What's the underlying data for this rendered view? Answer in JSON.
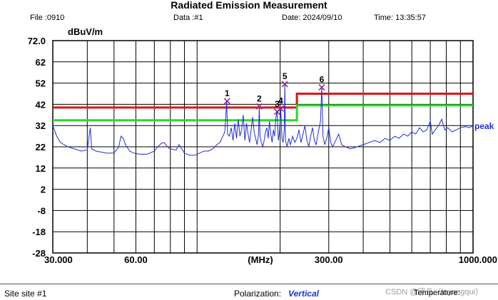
{
  "header": {
    "title": "Radiated Emission Measurement",
    "file": "File :0910",
    "data": "Data :#1",
    "date": "Date: 2024/09/10",
    "time": "Time: 13:35:57"
  },
  "footer": {
    "site": "Site  site #1",
    "polarization_label": "Polarization:",
    "polarization_value": "Vertical",
    "temperature": "Temperature:",
    "watermark": "CSDN @浮凡（fuyongqui）"
  },
  "colors": {
    "trace": "#1f2fd8",
    "limit_red": "#e01515",
    "limit_green": "#22dd22",
    "marker": "#8a2a8a",
    "grid": "#000000"
  },
  "chart_data": {
    "type": "line",
    "xscale": "log",
    "xlim": [
      30,
      1000
    ],
    "ylim": [
      -28,
      72
    ],
    "xlabel": "(MHz)",
    "ylabel": "dBuV/m",
    "yticks": [
      "72.0",
      "62",
      "52",
      "42",
      "32",
      "22",
      "12",
      "2",
      "-8",
      "-18",
      "-28"
    ],
    "xticks": [
      "30.000",
      "60.00",
      "300.00",
      "1000.000"
    ],
    "xtick_values": [
      30,
      60,
      300,
      1000
    ],
    "trace_label": "peak",
    "limits": [
      {
        "color": "red",
        "points": [
          [
            30,
            40.5
          ],
          [
            230,
            40.5
          ],
          [
            230,
            47
          ],
          [
            1000,
            47
          ]
        ]
      },
      {
        "color": "green",
        "points": [
          [
            30,
            34.5
          ],
          [
            230,
            34.5
          ],
          [
            230,
            41.5
          ],
          [
            1000,
            41.5
          ]
        ]
      }
    ],
    "markers": [
      {
        "label": "1",
        "freq": 128.5,
        "level": 43.5
      },
      {
        "label": "2",
        "freq": 168.0,
        "level": 41.0
      },
      {
        "label": "3",
        "freq": 195.0,
        "level": 38.5
      },
      {
        "label": "4",
        "freq": 201.0,
        "level": 40.0
      },
      {
        "label": "5",
        "freq": 208.0,
        "level": 51.5
      },
      {
        "label": "6",
        "freq": 283.0,
        "level": 50.0
      }
    ],
    "trace": [
      [
        30,
        32
      ],
      [
        31,
        27
      ],
      [
        32,
        24
      ],
      [
        34,
        22
      ],
      [
        36,
        21
      ],
      [
        38,
        20
      ],
      [
        40,
        20.5
      ],
      [
        41,
        31
      ],
      [
        41.5,
        21
      ],
      [
        43,
        20
      ],
      [
        45,
        19.5
      ],
      [
        47,
        19
      ],
      [
        50,
        19
      ],
      [
        52,
        22
      ],
      [
        53,
        27
      ],
      [
        54,
        26
      ],
      [
        55,
        23
      ],
      [
        57,
        20
      ],
      [
        59,
        19
      ],
      [
        62,
        18.5
      ],
      [
        66,
        18.5
      ],
      [
        70,
        20
      ],
      [
        72,
        22
      ],
      [
        74,
        23.5
      ],
      [
        76,
        24
      ],
      [
        78,
        22
      ],
      [
        80,
        21
      ],
      [
        84,
        20.5
      ],
      [
        86,
        23
      ],
      [
        88,
        21
      ],
      [
        90,
        19
      ],
      [
        94,
        18
      ],
      [
        98,
        18
      ],
      [
        102,
        19
      ],
      [
        106,
        20
      ],
      [
        110,
        20
      ],
      [
        114,
        21
      ],
      [
        118,
        23
      ],
      [
        121,
        24
      ],
      [
        124,
        27
      ],
      [
        126,
        29
      ],
      [
        128,
        43.5
      ],
      [
        129,
        28
      ],
      [
        131,
        27
      ],
      [
        133,
        31
      ],
      [
        135,
        25
      ],
      [
        137,
        33
      ],
      [
        139,
        26
      ],
      [
        141,
        35
      ],
      [
        143,
        27
      ],
      [
        145,
        30
      ],
      [
        147,
        37
      ],
      [
        149,
        25
      ],
      [
        151,
        33
      ],
      [
        153,
        28
      ],
      [
        155,
        24
      ],
      [
        157,
        30
      ],
      [
        159,
        36
      ],
      [
        161,
        29
      ],
      [
        163,
        26
      ],
      [
        165,
        23
      ],
      [
        167,
        28
      ],
      [
        168,
        41
      ],
      [
        169,
        27
      ],
      [
        171,
        24
      ],
      [
        173,
        22
      ],
      [
        175,
        25
      ],
      [
        177,
        29
      ],
      [
        179,
        31
      ],
      [
        181,
        26
      ],
      [
        183,
        34
      ],
      [
        185,
        28
      ],
      [
        187,
        24
      ],
      [
        189,
        30
      ],
      [
        191,
        27
      ],
      [
        193,
        36
      ],
      [
        195,
        38.5
      ],
      [
        197,
        25
      ],
      [
        199,
        29
      ],
      [
        201,
        40
      ],
      [
        203,
        26
      ],
      [
        205,
        24
      ],
      [
        207,
        30
      ],
      [
        208,
        51.5
      ],
      [
        209,
        25
      ],
      [
        212,
        22
      ],
      [
        215,
        26
      ],
      [
        218,
        23
      ],
      [
        222,
        27
      ],
      [
        226,
        24
      ],
      [
        230,
        26
      ],
      [
        234,
        30
      ],
      [
        238,
        24
      ],
      [
        242,
        28
      ],
      [
        246,
        32
      ],
      [
        250,
        25
      ],
      [
        254,
        22
      ],
      [
        258,
        27
      ],
      [
        262,
        31
      ],
      [
        266,
        25
      ],
      [
        270,
        23
      ],
      [
        275,
        29
      ],
      [
        280,
        34
      ],
      [
        283,
        50
      ],
      [
        286,
        27
      ],
      [
        290,
        23
      ],
      [
        295,
        26
      ],
      [
        300,
        31
      ],
      [
        305,
        24
      ],
      [
        310,
        22
      ],
      [
        318,
        25
      ],
      [
        326,
        28
      ],
      [
        334,
        23
      ],
      [
        345,
        22
      ],
      [
        360,
        21
      ],
      [
        380,
        22
      ],
      [
        400,
        23
      ],
      [
        420,
        24
      ],
      [
        440,
        25
      ],
      [
        460,
        24
      ],
      [
        480,
        26
      ],
      [
        500,
        25
      ],
      [
        520,
        27
      ],
      [
        540,
        26
      ],
      [
        560,
        28
      ],
      [
        580,
        27
      ],
      [
        600,
        29
      ],
      [
        620,
        28
      ],
      [
        640,
        31
      ],
      [
        660,
        29
      ],
      [
        680,
        30
      ],
      [
        700,
        34
      ],
      [
        712,
        28
      ],
      [
        730,
        30
      ],
      [
        750,
        32
      ],
      [
        770,
        35
      ],
      [
        790,
        30
      ],
      [
        810,
        31
      ],
      [
        840,
        29
      ],
      [
        870,
        30
      ],
      [
        900,
        31
      ],
      [
        940,
        31.5
      ],
      [
        970,
        31
      ],
      [
        1000,
        32
      ]
    ]
  }
}
